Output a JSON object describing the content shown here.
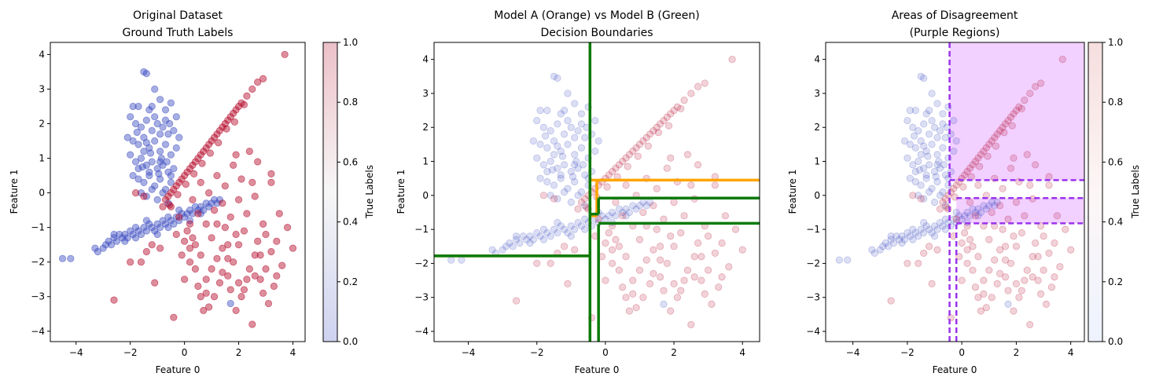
{
  "chart_data": [
    {
      "type": "scatter",
      "title_lines": [
        "Original Dataset",
        "Ground Truth Labels"
      ],
      "xlabel": "Feature 0",
      "ylabel": "Feature 1",
      "xlim": [
        -4.95,
        4.45
      ],
      "ylim": [
        -4.3,
        4.35
      ],
      "xticks": [
        -4,
        -2,
        0,
        2,
        4
      ],
      "yticks": [
        -4,
        -3,
        -2,
        -1,
        0,
        1,
        2,
        3,
        4
      ],
      "point_opacity": 0.45,
      "colorbar": {
        "label": "True Labels",
        "ticks": [
          "0.0",
          "0.2",
          "0.4",
          "0.6",
          "0.8",
          "1.0"
        ],
        "colors": [
          "#3b4cc0",
          "#dddddd",
          "#b40426"
        ],
        "alpha": 0.25
      }
    },
    {
      "type": "scatter",
      "title_lines": [
        "Model A (Orange) vs Model B (Green)",
        "Decision Boundaries"
      ],
      "xlabel": "Feature 0",
      "ylabel": "Feature 1",
      "xlim": [
        -5.0,
        4.5
      ],
      "ylim": [
        -4.3,
        4.5
      ],
      "xticks": [
        -4,
        -2,
        0,
        2,
        4
      ],
      "yticks": [
        -4,
        -3,
        -2,
        -1,
        0,
        1,
        2,
        3,
        4
      ],
      "point_opacity": 0.18,
      "model_a_color": "#ffa500",
      "model_b_color": "#0a7a0a",
      "boundaries": {
        "model_a": [
          [
            [
              -0.45,
              -4.3
            ],
            [
              -0.45,
              4.5
            ]
          ],
          [
            [
              -5.0,
              -1.78
            ],
            [
              -0.45,
              -1.78
            ]
          ],
          [
            [
              -0.45,
              0.45
            ],
            [
              4.5,
              0.45
            ]
          ],
          [
            [
              -0.45,
              -0.6
            ],
            [
              -0.25,
              -0.6
            ]
          ],
          [
            [
              -0.25,
              -0.6
            ],
            [
              -0.25,
              0.45
            ]
          ]
        ],
        "model_b": [
          [
            [
              -0.45,
              -4.3
            ],
            [
              -0.45,
              4.5
            ]
          ],
          [
            [
              -0.2,
              -4.3
            ],
            [
              -0.2,
              -0.85
            ]
          ],
          [
            [
              -5.0,
              -1.78
            ],
            [
              -0.45,
              -1.78
            ]
          ],
          [
            [
              -0.45,
              -0.55
            ],
            [
              -0.2,
              -0.55
            ]
          ],
          [
            [
              -0.2,
              -0.55
            ],
            [
              -0.2,
              -0.08
            ]
          ],
          [
            [
              -0.2,
              -0.08
            ],
            [
              4.5,
              -0.08
            ]
          ],
          [
            [
              -0.2,
              -0.82
            ],
            [
              4.5,
              -0.82
            ]
          ]
        ]
      }
    },
    {
      "type": "scatter",
      "title_lines": [
        "Areas of Disagreement",
        "(Purple Regions)"
      ],
      "xlabel": "Feature 0",
      "ylabel": "Feature 1",
      "xlim": [
        -5.0,
        4.5
      ],
      "ylim": [
        -4.3,
        4.5
      ],
      "xticks": [
        -4,
        -2,
        0,
        2,
        4
      ],
      "yticks": [
        -4,
        -3,
        -2,
        -1,
        0,
        1,
        2,
        3,
        4
      ],
      "point_opacity": 0.18,
      "region_color": "#cc44ff",
      "line_color": "#9933ee",
      "regions": [
        [
          [
            -0.45,
            0.45
          ],
          [
            4.5,
            4.5
          ]
        ],
        [
          [
            -0.2,
            -0.82
          ],
          [
            4.5,
            -0.08
          ]
        ]
      ],
      "dashed_lines": [
        [
          [
            -0.45,
            -4.3
          ],
          [
            -0.45,
            4.5
          ]
        ],
        [
          [
            -0.2,
            -4.3
          ],
          [
            -0.2,
            -0.85
          ]
        ],
        [
          [
            -0.45,
            0.45
          ],
          [
            4.5,
            0.45
          ]
        ],
        [
          [
            -0.2,
            -0.08
          ],
          [
            4.5,
            -0.08
          ]
        ],
        [
          [
            -0.2,
            -0.82
          ],
          [
            4.5,
            -0.82
          ]
        ]
      ],
      "colorbar": {
        "label": "True Labels",
        "ticks": [
          "0.0",
          "0.2",
          "0.4",
          "0.6",
          "0.8",
          "1.0"
        ],
        "colors": [
          "#eef3ff",
          "#fdf6f6",
          "#f6dede"
        ],
        "alpha": 1
      }
    }
  ],
  "points": {
    "class0_color": "#3b4cc0",
    "class1_color": "#b40426",
    "class0": [
      [
        -4.5,
        -1.9
      ],
      [
        -4.2,
        -1.9
      ],
      [
        -3.3,
        -1.6
      ],
      [
        -3.2,
        -1.7
      ],
      [
        -3.0,
        -1.6
      ],
      [
        -2.9,
        -1.5
      ],
      [
        -2.8,
        -1.4
      ],
      [
        -2.7,
        -1.5
      ],
      [
        -2.6,
        -1.3
      ],
      [
        -2.5,
        -1.4
      ],
      [
        -2.4,
        -1.2
      ],
      [
        -2.3,
        -1.3
      ],
      [
        -2.2,
        -1.2
      ],
      [
        -2.1,
        -1.3
      ],
      [
        -2.0,
        -1.1
      ],
      [
        -1.9,
        -1.2
      ],
      [
        -1.8,
        -1.0
      ],
      [
        -1.7,
        -1.1
      ],
      [
        -1.6,
        -1.2
      ],
      [
        -1.5,
        -1.0
      ],
      [
        -1.4,
        -1.1
      ],
      [
        -1.3,
        -0.9
      ],
      [
        -1.2,
        -1.0
      ],
      [
        -1.1,
        -1.1
      ],
      [
        -1.0,
        -0.9
      ],
      [
        -0.9,
        -1.0
      ],
      [
        -0.8,
        -0.8
      ],
      [
        -0.7,
        -0.9
      ],
      [
        -0.6,
        -1.0
      ],
      [
        -0.5,
        -0.8
      ],
      [
        -0.4,
        -0.9
      ],
      [
        -0.3,
        -0.7
      ],
      [
        -0.2,
        -0.8
      ],
      [
        -0.1,
        -0.6
      ],
      [
        0.0,
        -0.7
      ],
      [
        0.1,
        -0.6
      ],
      [
        0.2,
        -0.5
      ],
      [
        0.3,
        -0.6
      ],
      [
        0.4,
        -0.4
      ],
      [
        0.5,
        -0.5
      ],
      [
        0.6,
        -0.4
      ],
      [
        0.7,
        -0.5
      ],
      [
        0.8,
        -0.3
      ],
      [
        0.9,
        -0.4
      ],
      [
        1.0,
        -0.3
      ],
      [
        1.1,
        -0.2
      ],
      [
        1.2,
        -0.3
      ],
      [
        1.3,
        -0.2
      ],
      [
        -2.6,
        -1.2
      ],
      [
        -2.2,
        -1.4
      ],
      [
        -1.8,
        -1.3
      ],
      [
        -1.4,
        -0.8
      ],
      [
        -1.0,
        -1.2
      ],
      [
        -0.6,
        -0.7
      ],
      [
        -0.2,
        -0.5
      ],
      [
        0.2,
        -0.8
      ],
      [
        0.6,
        -0.6
      ],
      [
        -1.5,
        3.5
      ],
      [
        -1.4,
        3.45
      ],
      [
        -1.9,
        2.5
      ],
      [
        -1.7,
        2.5
      ],
      [
        -1.3,
        2.4
      ],
      [
        -1.2,
        2.5
      ],
      [
        -0.9,
        2.7
      ],
      [
        -0.7,
        2.4
      ],
      [
        -0.5,
        2.6
      ],
      [
        -0.3,
        2.2
      ],
      [
        -2.0,
        2.2
      ],
      [
        -1.8,
        2.0
      ],
      [
        -1.6,
        1.9
      ],
      [
        -1.4,
        2.1
      ],
      [
        -1.2,
        1.8
      ],
      [
        -1.0,
        2.0
      ],
      [
        -0.8,
        1.9
      ],
      [
        -0.6,
        1.7
      ],
      [
        -0.4,
        1.8
      ],
      [
        -0.2,
        1.6
      ],
      [
        -2.1,
        1.6
      ],
      [
        -1.9,
        1.5
      ],
      [
        -1.7,
        1.4
      ],
      [
        -1.5,
        1.6
      ],
      [
        -1.3,
        1.3
      ],
      [
        -1.1,
        1.5
      ],
      [
        -0.9,
        1.2
      ],
      [
        -0.7,
        1.4
      ],
      [
        -0.5,
        1.1
      ],
      [
        -0.3,
        1.3
      ],
      [
        -2.0,
        1.1
      ],
      [
        -1.8,
        0.9
      ],
      [
        -1.6,
        1.0
      ],
      [
        -1.4,
        0.8
      ],
      [
        -1.2,
        0.9
      ],
      [
        -1.0,
        0.7
      ],
      [
        -0.8,
        0.8
      ],
      [
        -0.6,
        0.6
      ],
      [
        -0.4,
        0.7
      ],
      [
        -1.9,
        0.5
      ],
      [
        -1.7,
        0.4
      ],
      [
        -1.5,
        0.3
      ],
      [
        -1.3,
        0.5
      ],
      [
        -1.1,
        0.2
      ],
      [
        -0.9,
        0.4
      ],
      [
        -0.7,
        0.1
      ],
      [
        -0.5,
        0.3
      ],
      [
        -1.6,
        0.0
      ],
      [
        -1.4,
        -0.1
      ],
      [
        -1.2,
        0.1
      ],
      [
        -1.0,
        -0.2
      ],
      [
        -0.8,
        0.0
      ],
      [
        -0.6,
        -0.3
      ],
      [
        -1.1,
        2.2
      ],
      [
        -0.9,
        1.7
      ],
      [
        -1.5,
        1.2
      ],
      [
        -1.7,
        0.7
      ],
      [
        -1.3,
        0.6
      ],
      [
        -0.9,
        0.9
      ],
      [
        -0.5,
        0.5
      ],
      [
        1.7,
        -3.2
      ],
      [
        -1.1,
        3.0
      ],
      [
        -0.7,
        2.1
      ],
      [
        -1.4,
        1.45
      ],
      [
        -0.85,
        1.0
      ],
      [
        -1.25,
        1.15
      ],
      [
        -0.65,
        0.9
      ],
      [
        -1.55,
        0.75
      ],
      [
        -0.95,
        0.55
      ],
      [
        -1.75,
        1.75
      ],
      [
        -0.55,
        2.0
      ]
    ],
    "class1": [
      [
        3.7,
        4.0
      ],
      [
        2.9,
        3.3
      ],
      [
        2.7,
        3.2
      ],
      [
        2.5,
        3.0
      ],
      [
        2.3,
        2.8
      ],
      [
        2.1,
        2.6
      ],
      [
        2.0,
        2.5
      ],
      [
        1.9,
        2.4
      ],
      [
        1.8,
        2.3
      ],
      [
        1.7,
        2.2
      ],
      [
        1.6,
        2.1
      ],
      [
        1.5,
        2.0
      ],
      [
        1.4,
        1.9
      ],
      [
        1.3,
        1.8
      ],
      [
        1.2,
        1.7
      ],
      [
        1.1,
        1.6
      ],
      [
        1.0,
        1.5
      ],
      [
        0.9,
        1.4
      ],
      [
        0.8,
        1.3
      ],
      [
        0.7,
        1.2
      ],
      [
        0.6,
        1.1
      ],
      [
        0.5,
        1.0
      ],
      [
        0.4,
        0.9
      ],
      [
        0.3,
        0.8
      ],
      [
        0.2,
        0.7
      ],
      [
        0.1,
        0.6
      ],
      [
        0.0,
        0.5
      ],
      [
        -0.1,
        0.4
      ],
      [
        -0.2,
        0.3
      ],
      [
        -0.3,
        0.2
      ],
      [
        -0.4,
        0.1
      ],
      [
        -0.5,
        0.0
      ],
      [
        -0.6,
        -0.1
      ],
      [
        -0.7,
        -0.2
      ],
      [
        -0.8,
        -0.4
      ],
      [
        1.55,
        1.85
      ],
      [
        1.25,
        1.45
      ],
      [
        0.95,
        1.15
      ],
      [
        0.65,
        0.85
      ],
      [
        0.35,
        0.55
      ],
      [
        0.05,
        0.25
      ],
      [
        -0.25,
        -0.05
      ],
      [
        -0.55,
        -0.35
      ],
      [
        2.2,
        2.55
      ],
      [
        1.85,
        2.05
      ],
      [
        -1.8,
        0.0
      ],
      [
        -1.5,
        -0.1
      ],
      [
        -1.2,
        -1.5
      ],
      [
        -1.6,
        -2.0
      ],
      [
        -1.1,
        -2.6
      ],
      [
        -2.0,
        -2.0
      ],
      [
        -2.6,
        -3.1
      ],
      [
        -0.4,
        -3.6
      ],
      [
        0.0,
        -2.5
      ],
      [
        0.2,
        -2.0
      ],
      [
        0.4,
        -1.5
      ],
      [
        0.6,
        -1.8
      ],
      [
        0.8,
        -2.5
      ],
      [
        1.0,
        -2.2
      ],
      [
        1.2,
        -1.9
      ],
      [
        1.4,
        -1.6
      ],
      [
        1.6,
        -2.4
      ],
      [
        1.8,
        -2.0
      ],
      [
        2.0,
        -1.5
      ],
      [
        2.2,
        -2.8
      ],
      [
        2.4,
        -2.2
      ],
      [
        2.6,
        -1.8
      ],
      [
        2.8,
        -2.5
      ],
      [
        3.0,
        -1.2
      ],
      [
        3.2,
        -1.7
      ],
      [
        3.4,
        -2.4
      ],
      [
        3.6,
        -2.1
      ],
      [
        3.8,
        -1.0
      ],
      [
        4.0,
        -1.6
      ],
      [
        3.3,
        -2.7
      ],
      [
        3.1,
        -3.2
      ],
      [
        2.9,
        -2.9
      ],
      [
        2.7,
        -1.4
      ],
      [
        2.5,
        -3.8
      ],
      [
        2.3,
        -2.5
      ],
      [
        2.1,
        -3.0
      ],
      [
        1.9,
        -1.2
      ],
      [
        1.7,
        -2.8
      ],
      [
        1.5,
        -1.0
      ],
      [
        1.3,
        -2.6
      ],
      [
        1.1,
        -3.0
      ],
      [
        0.9,
        -3.3
      ],
      [
        0.7,
        -3.4
      ],
      [
        0.5,
        -2.7
      ],
      [
        0.3,
        -1.3
      ],
      [
        0.1,
        -1.1
      ],
      [
        -0.1,
        -1.8
      ],
      [
        0.5,
        -0.6
      ],
      [
        0.8,
        -0.9
      ],
      [
        1.1,
        -0.5
      ],
      [
        1.4,
        -0.3
      ],
      [
        1.7,
        -0.7
      ],
      [
        2.0,
        -0.2
      ],
      [
        2.3,
        -0.6
      ],
      [
        2.6,
        -0.1
      ],
      [
        2.9,
        -0.9
      ],
      [
        3.2,
        0.3
      ],
      [
        3.5,
        -0.6
      ],
      [
        2.4,
        1.2
      ],
      [
        2.1,
        0.4
      ],
      [
        1.8,
        0.8
      ],
      [
        1.5,
        0.2
      ],
      [
        1.2,
        0.5
      ],
      [
        0.9,
        0.0
      ],
      [
        0.6,
        0.3
      ],
      [
        0.3,
        -0.2
      ],
      [
        -0.2,
        -0.7
      ],
      [
        -0.5,
        -0.4
      ],
      [
        3.2,
        0.55
      ],
      [
        2.7,
        0.9
      ],
      [
        1.9,
        1.1
      ],
      [
        0.2,
        -0.9
      ],
      [
        0.4,
        -2.2
      ],
      [
        1.0,
        -1.3
      ],
      [
        1.6,
        -1.5
      ],
      [
        2.2,
        -1.1
      ],
      [
        2.8,
        -1.8
      ],
      [
        3.0,
        -2.2
      ],
      [
        0.8,
        -2.9
      ],
      [
        1.4,
        -2.3
      ],
      [
        -0.9,
        -1.6
      ],
      [
        -1.4,
        -1.7
      ],
      [
        0.0,
        -1.4
      ],
      [
        2.5,
        0.3
      ],
      [
        3.4,
        -1.4
      ],
      [
        0.6,
        -3.0
      ],
      [
        1.9,
        -3.4
      ],
      [
        2.6,
        -2.4
      ],
      [
        1.2,
        -0.9
      ],
      [
        0.2,
        -1.6
      ],
      [
        2.0,
        -2.6
      ],
      [
        1.6,
        -1.9
      ],
      [
        -0.3,
        -1.2
      ]
    ]
  }
}
